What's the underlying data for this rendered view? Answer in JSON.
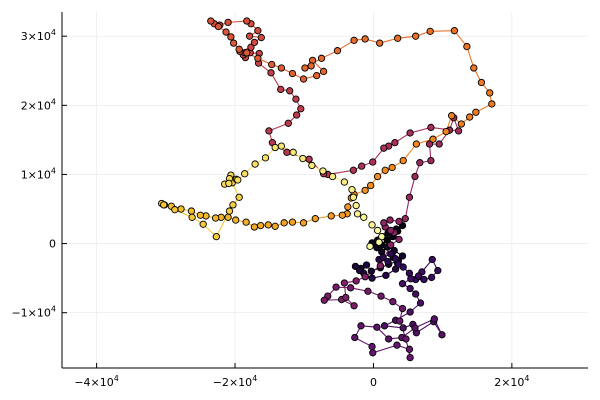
{
  "chart_data": {
    "type": "scatter",
    "title": "",
    "xlabel": "",
    "ylabel": "",
    "xlim": [
      -45000,
      31000
    ],
    "ylim": [
      -18000,
      33500
    ],
    "grid": true,
    "legend": "none",
    "x_ticks": [
      {
        "value": -40000,
        "mantissa": "−4×10",
        "exp": "4"
      },
      {
        "value": -20000,
        "mantissa": "−2×10",
        "exp": "4"
      },
      {
        "value": 0,
        "mantissa": "0",
        "exp": ""
      },
      {
        "value": 20000,
        "mantissa": "2×10",
        "exp": "4"
      }
    ],
    "y_ticks": [
      {
        "value": -10000,
        "mantissa": "−1×10",
        "exp": "4"
      },
      {
        "value": 0,
        "mantissa": "0",
        "exp": ""
      },
      {
        "value": 10000,
        "mantissa": "1×10",
        "exp": "4"
      },
      {
        "value": 20000,
        "mantissa": "2×10",
        "exp": "4"
      },
      {
        "value": 30000,
        "mantissa": "3×10",
        "exp": "4"
      }
    ],
    "colormap_stops": [
      "#000004",
      "#2f0a5b",
      "#6b176e",
      "#a62f5b",
      "#d8503a",
      "#f2801e",
      "#f4c42c",
      "#fcffa4"
    ],
    "points": [
      [
        0,
        0
      ],
      [
        500,
        300
      ],
      [
        1200,
        -200
      ],
      [
        2000,
        500
      ],
      [
        2800,
        1000
      ],
      [
        3500,
        1800
      ],
      [
        4200,
        2600
      ],
      [
        3300,
        2100
      ],
      [
        2100,
        1500
      ],
      [
        1300,
        1000
      ],
      [
        600,
        500
      ],
      [
        -200,
        100
      ],
      [
        500,
        -600
      ],
      [
        1200,
        -1200
      ],
      [
        2000,
        -500
      ],
      [
        3000,
        -1000
      ],
      [
        4200,
        -1800
      ],
      [
        3600,
        -2500
      ],
      [
        2200,
        -3000
      ],
      [
        1000,
        -3500
      ],
      [
        -300,
        -4000
      ],
      [
        -1000,
        -3100
      ],
      [
        -1800,
        -3600
      ],
      [
        -2600,
        -3300
      ],
      [
        -2000,
        -3900
      ],
      [
        -1400,
        -4300
      ],
      [
        -200,
        -5000
      ],
      [
        1800,
        -4600
      ],
      [
        3200,
        -3700
      ],
      [
        3500,
        -2900
      ],
      [
        2900,
        -2000
      ],
      [
        2100,
        -2600
      ],
      [
        800,
        -2300
      ],
      [
        1400,
        -2000
      ],
      [
        2500,
        -1500
      ],
      [
        3200,
        -2200
      ],
      [
        3600,
        -3000
      ],
      [
        4300,
        -3400
      ],
      [
        5200,
        -4300
      ],
      [
        6100,
        -5200
      ],
      [
        7300,
        -5200
      ],
      [
        8400,
        -4900
      ],
      [
        9300,
        -3900
      ],
      [
        8500,
        -2300
      ],
      [
        7000,
        -4100
      ],
      [
        6500,
        -4700
      ],
      [
        5400,
        -5100
      ],
      [
        4200,
        -5800
      ],
      [
        5300,
        -6500
      ],
      [
        6100,
        -7300
      ],
      [
        6800,
        -8600
      ],
      [
        5300,
        -9900
      ],
      [
        3200,
        -11100
      ],
      [
        1600,
        -11900
      ],
      [
        4300,
        -12200
      ],
      [
        5700,
        -11700
      ],
      [
        6200,
        -12900
      ],
      [
        8700,
        -11300
      ],
      [
        9900,
        -13200
      ],
      [
        8800,
        -10900
      ],
      [
        6000,
        -12200
      ],
      [
        4100,
        -13600
      ],
      [
        2200,
        -13800
      ],
      [
        500,
        -12100
      ],
      [
        -1800,
        -11900
      ],
      [
        -2700,
        -13600
      ],
      [
        -200,
        -14900
      ],
      [
        -100,
        -15800
      ],
      [
        3400,
        -14700
      ],
      [
        5200,
        -15300
      ],
      [
        5300,
        -16500
      ],
      [
        4700,
        -13800
      ],
      [
        3800,
        -11200
      ],
      [
        4200,
        -9400
      ],
      [
        2800,
        -8400
      ],
      [
        1100,
        -7600
      ],
      [
        -800,
        -6900
      ],
      [
        -3300,
        -6400
      ],
      [
        -5400,
        -6300
      ],
      [
        -6600,
        -7600
      ],
      [
        -7100,
        -8200
      ],
      [
        -4600,
        -8100
      ],
      [
        -2800,
        -9000
      ],
      [
        -4000,
        -7800
      ],
      [
        -4200,
        -5700
      ],
      [
        -2500,
        -5400
      ],
      [
        -1200,
        -4800
      ],
      [
        1000,
        -3200
      ],
      [
        2500,
        -200
      ],
      [
        3700,
        600
      ],
      [
        3000,
        1600
      ],
      [
        2500,
        1900
      ],
      [
        1700,
        2400
      ],
      [
        1500,
        3000
      ],
      [
        2400,
        3400
      ],
      [
        3700,
        3200
      ],
      [
        4600,
        3600
      ],
      [
        5200,
        6700
      ],
      [
        6000,
        9700
      ],
      [
        6700,
        11700
      ],
      [
        8300,
        12000
      ],
      [
        8100,
        14400
      ],
      [
        9500,
        14400
      ],
      [
        11000,
        16400
      ],
      [
        11600,
        18200
      ],
      [
        12300,
        16300
      ],
      [
        8300,
        16800
      ],
      [
        5300,
        16000
      ],
      [
        3100,
        14600
      ],
      [
        2200,
        14100
      ],
      [
        1500,
        13800
      ],
      [
        -100,
        11800
      ],
      [
        -1700,
        11200
      ],
      [
        -2900,
        10600
      ],
      [
        -6600,
        10000
      ],
      [
        -7200,
        10100
      ],
      [
        -9300,
        12200
      ],
      [
        -12500,
        13200
      ],
      [
        -14600,
        14600
      ],
      [
        -15100,
        16300
      ],
      [
        -12300,
        17400
      ],
      [
        -11100,
        18600
      ],
      [
        -10500,
        19500
      ],
      [
        -11200,
        20900
      ],
      [
        -12100,
        22100
      ],
      [
        -13400,
        22300
      ],
      [
        -14800,
        24700
      ],
      [
        -16600,
        26100
      ],
      [
        -16500,
        27500
      ],
      [
        -17800,
        27600
      ],
      [
        -18500,
        26900
      ],
      [
        -18800,
        27300
      ],
      [
        -18600,
        27600
      ],
      [
        -19300,
        27800
      ],
      [
        -17700,
        28400
      ],
      [
        -17200,
        29100
      ],
      [
        -16200,
        29800
      ],
      [
        -17900,
        30000
      ],
      [
        -16700,
        30800
      ],
      [
        -17700,
        31800
      ],
      [
        -18300,
        32200
      ],
      [
        -21000,
        32000
      ],
      [
        -22200,
        31600
      ],
      [
        -23000,
        31800
      ],
      [
        -23500,
        32200
      ],
      [
        -22400,
        31400
      ],
      [
        -21300,
        30600
      ],
      [
        -20600,
        29900
      ],
      [
        -20200,
        29000
      ],
      [
        -19400,
        28100
      ],
      [
        -18300,
        27600
      ],
      [
        -16700,
        26800
      ],
      [
        -14700,
        25900
      ],
      [
        -13300,
        25400
      ],
      [
        -11700,
        24600
      ],
      [
        -10100,
        23800
      ],
      [
        -8200,
        24300
      ],
      [
        -7200,
        24900
      ],
      [
        -8800,
        26500
      ],
      [
        -9000,
        25700
      ],
      [
        -9900,
        25400
      ],
      [
        -7500,
        26800
      ],
      [
        -5200,
        27900
      ],
      [
        -2800,
        29400
      ],
      [
        -1200,
        29600
      ],
      [
        900,
        29000
      ],
      [
        3500,
        29700
      ],
      [
        6100,
        30000
      ],
      [
        8200,
        30700
      ],
      [
        11700,
        30800
      ],
      [
        13500,
        28500
      ],
      [
        14500,
        25400
      ],
      [
        15600,
        23300
      ],
      [
        16800,
        21800
      ],
      [
        17100,
        20200
      ],
      [
        14800,
        19000
      ],
      [
        13900,
        18300
      ],
      [
        12700,
        17300
      ],
      [
        11300,
        18500
      ],
      [
        10500,
        16200
      ],
      [
        8600,
        15100
      ],
      [
        6200,
        14400
      ],
      [
        4300,
        12000
      ],
      [
        2700,
        11000
      ],
      [
        1700,
        10600
      ],
      [
        600,
        9700
      ],
      [
        -400,
        8400
      ],
      [
        -1200,
        7700
      ],
      [
        -2800,
        7100
      ],
      [
        -3200,
        6600
      ],
      [
        -3700,
        5300
      ],
      [
        -3800,
        4300
      ],
      [
        -4500,
        4100
      ],
      [
        -6100,
        4000
      ],
      [
        -8400,
        3600
      ],
      [
        -10100,
        3000
      ],
      [
        -11700,
        3100
      ],
      [
        -12900,
        3000
      ],
      [
        -14200,
        2500
      ],
      [
        -15200,
        2700
      ],
      [
        -16300,
        2600
      ],
      [
        -17200,
        2400
      ],
      [
        -18400,
        3100
      ],
      [
        -19900,
        3400
      ],
      [
        -21000,
        3800
      ],
      [
        -22000,
        3800
      ],
      [
        -22800,
        3700
      ],
      [
        -24200,
        4000
      ],
      [
        -25000,
        4100
      ],
      [
        -26300,
        4700
      ],
      [
        -27800,
        5000
      ],
      [
        -29200,
        5400
      ],
      [
        -30200,
        5600
      ],
      [
        -30600,
        5800
      ],
      [
        -30300,
        5600
      ],
      [
        -28700,
        4900
      ],
      [
        -26200,
        3800
      ],
      [
        -24600,
        2800
      ],
      [
        -22700,
        1000
      ],
      [
        -20800,
        4700
      ],
      [
        -20300,
        5600
      ],
      [
        -19400,
        6700
      ],
      [
        -20400,
        8800
      ],
      [
        -19800,
        9300
      ],
      [
        -20600,
        9900
      ],
      [
        -20800,
        9400
      ],
      [
        -21500,
        8600
      ],
      [
        -20900,
        8700
      ],
      [
        -19600,
        9200
      ],
      [
        -18600,
        10100
      ],
      [
        -17100,
        11500
      ],
      [
        -15600,
        12400
      ],
      [
        -14200,
        13900
      ],
      [
        -13300,
        14100
      ],
      [
        -11600,
        13200
      ],
      [
        -10200,
        12300
      ],
      [
        -8900,
        11300
      ],
      [
        -7300,
        10500
      ],
      [
        -5900,
        9700
      ],
      [
        -4200,
        8900
      ],
      [
        -3100,
        7800
      ],
      [
        -2900,
        6700
      ],
      [
        -2500,
        5500
      ],
      [
        -2300,
        4300
      ],
      [
        -1400,
        3800
      ],
      [
        -200,
        2700
      ],
      [
        600,
        1900
      ],
      [
        1200,
        1000
      ],
      [
        800,
        200
      ],
      [
        -500,
        -400
      ]
    ]
  }
}
